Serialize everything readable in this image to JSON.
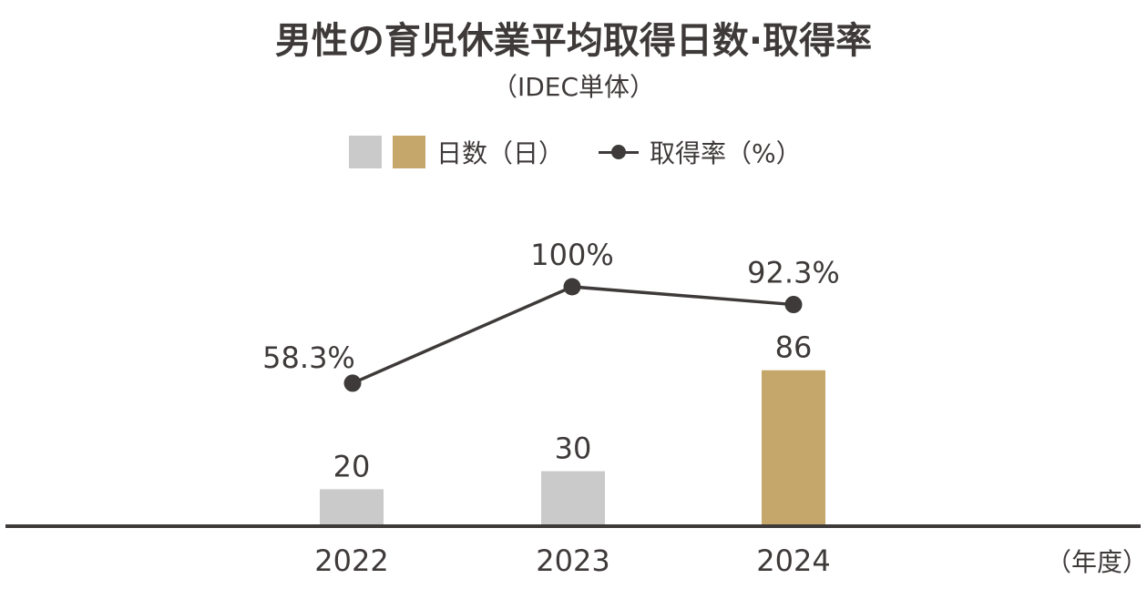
{
  "chart_data": {
    "type": "bar",
    "title": "男性の育児休業平均取得日数·取得率",
    "subtitle": "（IDEC単体）",
    "categories": [
      "2022",
      "2023",
      "2024"
    ],
    "xlabel": "（年度）",
    "ylabel": "",
    "grid": false,
    "legend_position": "top-center",
    "legend": [
      {
        "label": "日数（日）",
        "type": "bar",
        "colors": [
          "#c9cac9",
          "#c6a76b"
        ]
      },
      {
        "label": "取得率（%）",
        "type": "line",
        "color": "#3e3a39"
      }
    ],
    "series": [
      {
        "name": "日数（日）",
        "type": "bar",
        "values": [
          20,
          30,
          86
        ],
        "labels": [
          "20",
          "30",
          "86"
        ],
        "colors": [
          "#c9cac9",
          "#c9cac9",
          "#c6a76b"
        ]
      },
      {
        "name": "取得率（%）",
        "type": "line",
        "values": [
          58.3,
          100,
          92.3
        ],
        "labels": [
          "58.3%",
          "100%",
          "92.3%"
        ],
        "color": "#3e3a39"
      }
    ]
  }
}
